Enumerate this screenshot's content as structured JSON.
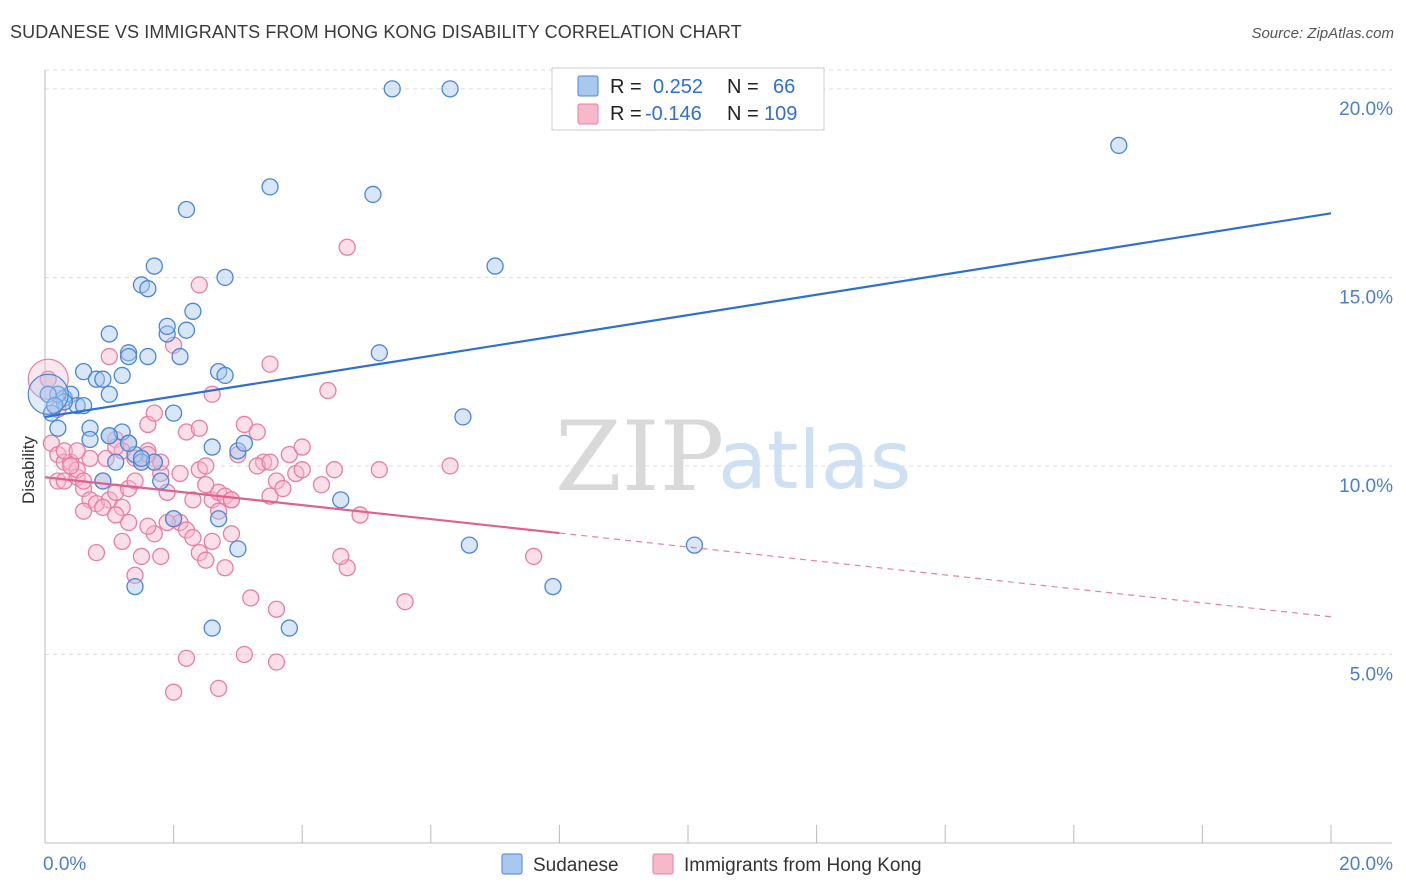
{
  "title": "SUDANESE VS IMMIGRANTS FROM HONG KONG DISABILITY CORRELATION CHART",
  "source": "Source: ZipAtlas.com",
  "watermark": {
    "zip": "ZIP",
    "atlas": "atlas"
  },
  "legend_top": {
    "rows": [
      {
        "r_label": "R =",
        "r_value": "0.252",
        "n_label": "N =",
        "n_value": "66"
      },
      {
        "r_label": "R =",
        "r_value": "-0.146",
        "n_label": "N =",
        "n_value": "109"
      }
    ]
  },
  "legend_bottom": [
    "Sudanese",
    "Immigrants from Hong Kong"
  ],
  "colors": {
    "blue_fill": "#a9c8f0",
    "blue_stroke": "#4a86d8",
    "blue_line": "#2f6fd0",
    "pink_fill": "#f6b8cb",
    "pink_stroke": "#e87fa3",
    "pink_line": "#e0608e",
    "grid": "#dddddd",
    "axis_text": "#4a7fd0"
  },
  "chart_data": {
    "type": "scatter",
    "ylabel": "Disability",
    "x_tick_labels": [
      "0.0%",
      "20.0%"
    ],
    "y_tick_labels": [
      "5.0%",
      "10.0%",
      "15.0%",
      "20.0%"
    ],
    "xlim": [
      0,
      20
    ],
    "ylim": [
      0,
      20.5
    ],
    "y_ticks": [
      5,
      10,
      15,
      20
    ],
    "x_ticks": [
      0,
      2,
      4,
      6,
      8,
      10,
      12,
      14,
      16,
      18,
      20
    ],
    "series": [
      {
        "name": "Sudanese",
        "trend": {
          "x": [
            0,
            20
          ],
          "y": [
            11.3,
            16.7
          ],
          "dashed_from": null
        },
        "points": [
          [
            0.1,
            11.4
          ],
          [
            0.2,
            11.0
          ],
          [
            0.3,
            11.8
          ],
          [
            0.4,
            11.9
          ],
          [
            0.5,
            11.6
          ],
          [
            0.3,
            11.7
          ],
          [
            0.6,
            12.5
          ],
          [
            0.8,
            12.3
          ],
          [
            0.9,
            12.3
          ],
          [
            1.0,
            11.9
          ],
          [
            0.7,
            11.0
          ],
          [
            0.7,
            10.7
          ],
          [
            1.0,
            10.8
          ],
          [
            1.2,
            10.9
          ],
          [
            1.1,
            10.1
          ],
          [
            1.4,
            10.3
          ],
          [
            1.5,
            10.1
          ],
          [
            1.7,
            10.1
          ],
          [
            1.3,
            10.6
          ],
          [
            0.9,
            9.6
          ],
          [
            1.0,
            10.8
          ],
          [
            1.5,
            10.2
          ],
          [
            1.8,
            9.6
          ],
          [
            2.0,
            8.6
          ],
          [
            2.0,
            11.4
          ],
          [
            1.9,
            13.5
          ],
          [
            2.1,
            12.9
          ],
          [
            2.2,
            13.6
          ],
          [
            1.9,
            13.7
          ],
          [
            1.7,
            15.3
          ],
          [
            2.3,
            14.1
          ],
          [
            2.8,
            15.0
          ],
          [
            2.7,
            12.5
          ],
          [
            2.8,
            12.4
          ],
          [
            3.0,
            10.4
          ],
          [
            3.1,
            10.6
          ],
          [
            2.6,
            10.5
          ],
          [
            2.7,
            8.6
          ],
          [
            3.0,
            7.8
          ],
          [
            2.6,
            5.7
          ],
          [
            3.8,
            5.7
          ],
          [
            1.4,
            6.8
          ],
          [
            1.0,
            13.5
          ],
          [
            1.3,
            13.0
          ],
          [
            1.5,
            14.8
          ],
          [
            1.6,
            14.7
          ],
          [
            2.2,
            16.8
          ],
          [
            3.5,
            17.4
          ],
          [
            5.1,
            17.2
          ],
          [
            5.4,
            20.0
          ],
          [
            6.3,
            20.0
          ],
          [
            7.0,
            15.3
          ],
          [
            5.2,
            13.0
          ],
          [
            6.5,
            11.3
          ],
          [
            4.6,
            9.1
          ],
          [
            6.6,
            7.9
          ],
          [
            7.9,
            6.8
          ],
          [
            10.1,
            7.9
          ],
          [
            16.7,
            18.5
          ],
          [
            0.2,
            11.9
          ],
          [
            0.05,
            11.9
          ],
          [
            0.15,
            11.6
          ],
          [
            1.2,
            12.4
          ],
          [
            0.6,
            11.6
          ],
          [
            1.3,
            12.9
          ],
          [
            1.6,
            12.9
          ]
        ],
        "big_point": [
          0.05,
          11.9
        ]
      },
      {
        "name": "Immigrants from Hong Kong",
        "trend": {
          "x": [
            0,
            20
          ],
          "y": [
            9.7,
            6.0
          ],
          "dashed_from": 8.0
        },
        "points": [
          [
            0.1,
            10.6
          ],
          [
            0.2,
            10.3
          ],
          [
            0.3,
            10.1
          ],
          [
            0.4,
            10.1
          ],
          [
            0.2,
            9.6
          ],
          [
            0.3,
            9.6
          ],
          [
            0.5,
            9.7
          ],
          [
            0.6,
            9.4
          ],
          [
            0.7,
            9.1
          ],
          [
            0.8,
            9.0
          ],
          [
            0.9,
            9.6
          ],
          [
            0.6,
            8.8
          ],
          [
            1.0,
            9.1
          ],
          [
            1.1,
            9.3
          ],
          [
            1.2,
            8.9
          ],
          [
            1.3,
            9.4
          ],
          [
            1.4,
            10.2
          ],
          [
            1.5,
            10.1
          ],
          [
            1.6,
            10.4
          ],
          [
            1.7,
            10.1
          ],
          [
            1.8,
            9.8
          ],
          [
            1.9,
            9.3
          ],
          [
            2.0,
            8.6
          ],
          [
            2.1,
            8.5
          ],
          [
            2.2,
            10.9
          ],
          [
            2.3,
            9.1
          ],
          [
            2.4,
            9.9
          ],
          [
            2.5,
            10.0
          ],
          [
            2.6,
            9.1
          ],
          [
            2.7,
            9.3
          ],
          [
            2.8,
            9.2
          ],
          [
            2.9,
            9.1
          ],
          [
            3.0,
            10.3
          ],
          [
            3.1,
            11.1
          ],
          [
            3.3,
            10.9
          ],
          [
            3.4,
            10.1
          ],
          [
            3.5,
            9.2
          ],
          [
            3.6,
            9.6
          ],
          [
            3.8,
            10.3
          ],
          [
            3.9,
            9.8
          ],
          [
            4.0,
            9.9
          ],
          [
            4.3,
            9.5
          ],
          [
            4.5,
            9.9
          ],
          [
            4.9,
            8.7
          ],
          [
            4.7,
            7.3
          ],
          [
            4.6,
            7.6
          ],
          [
            5.2,
            9.9
          ],
          [
            6.3,
            10.0
          ],
          [
            7.6,
            7.6
          ],
          [
            5.6,
            6.4
          ],
          [
            3.2,
            6.5
          ],
          [
            3.6,
            6.2
          ],
          [
            3.1,
            5.0
          ],
          [
            3.6,
            4.8
          ],
          [
            2.2,
            4.9
          ],
          [
            2.7,
            4.1
          ],
          [
            2.0,
            4.0
          ],
          [
            1.5,
            7.6
          ],
          [
            1.4,
            7.1
          ],
          [
            1.2,
            8.0
          ],
          [
            0.8,
            7.7
          ],
          [
            1.7,
            8.2
          ],
          [
            1.8,
            7.6
          ],
          [
            2.4,
            7.7
          ],
          [
            2.5,
            7.5
          ],
          [
            2.8,
            7.3
          ],
          [
            2.6,
            8.0
          ],
          [
            2.9,
            8.2
          ],
          [
            1.3,
            8.5
          ],
          [
            1.6,
            8.4
          ],
          [
            0.9,
            8.9
          ],
          [
            1.1,
            8.7
          ],
          [
            2.4,
            11.0
          ],
          [
            2.6,
            11.9
          ],
          [
            2.0,
            13.2
          ],
          [
            2.4,
            14.8
          ],
          [
            3.5,
            12.7
          ],
          [
            4.4,
            12.0
          ],
          [
            4.7,
            15.8
          ],
          [
            1.6,
            11.1
          ],
          [
            1.7,
            11.4
          ],
          [
            1.1,
            10.7
          ],
          [
            1.3,
            10.6
          ],
          [
            0.5,
            9.9
          ],
          [
            0.7,
            10.2
          ],
          [
            0.95,
            10.2
          ],
          [
            0.3,
            10.4
          ],
          [
            0.4,
            10.0
          ],
          [
            0.2,
            11.5
          ],
          [
            1.2,
            10.4
          ],
          [
            1.6,
            10.3
          ],
          [
            1.8,
            10.1
          ],
          [
            2.1,
            9.8
          ],
          [
            2.2,
            8.3
          ],
          [
            2.5,
            9.5
          ],
          [
            2.9,
            9.1
          ],
          [
            3.3,
            10.0
          ],
          [
            3.5,
            10.1
          ],
          [
            3.7,
            9.4
          ],
          [
            4.0,
            10.5
          ],
          [
            1.0,
            12.9
          ],
          [
            1.1,
            10.5
          ],
          [
            1.9,
            8.5
          ],
          [
            2.3,
            8.1
          ],
          [
            0.5,
            10.4
          ],
          [
            0.6,
            9.6
          ],
          [
            1.4,
            9.6
          ],
          [
            2.7,
            8.8
          ],
          [
            0.05,
            12.3
          ]
        ],
        "big_point": [
          0.05,
          12.3
        ]
      }
    ]
  }
}
